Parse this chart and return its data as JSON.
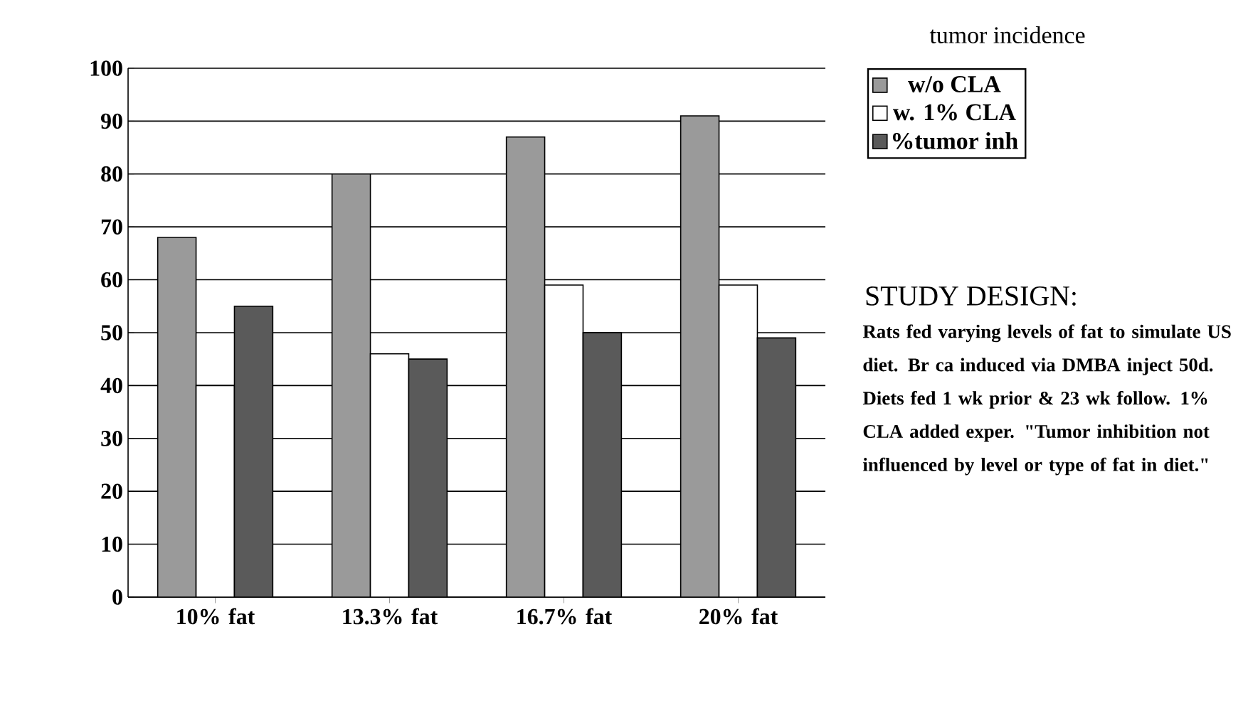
{
  "chart_data": {
    "type": "bar",
    "legend_title": "tumor incidence",
    "categories": [
      "10% fat",
      "13.3% fat",
      "16.7% fat",
      "20% fat"
    ],
    "series": [
      {
        "name": "w/o CLA",
        "color": "#9a9a9a",
        "values": [
          68,
          80,
          87,
          91
        ]
      },
      {
        "name": "w. 1% CLA",
        "color": "#ffffff",
        "values": [
          40,
          46,
          59,
          59
        ]
      },
      {
        "name": "%tumor inh",
        "color": "#5a5a5a",
        "values": [
          55,
          45,
          50,
          49
        ]
      }
    ],
    "ylim": [
      0,
      100
    ],
    "yticks": [
      0,
      10,
      20,
      30,
      40,
      50,
      60,
      70,
      80,
      90,
      100
    ],
    "grid": "y",
    "legend": "top right",
    "annotations": [
      "STUDY DESIGN:",
      "Rats fed varying levels of fat to simulate US diet. Br ca induced via DMBA inject 50d. Diets fed 1 wk prior & 23 wk follow. 1% CLA added exper. \"Tumor inhibition not influenced by level or type of fat in diet.\""
    ]
  }
}
